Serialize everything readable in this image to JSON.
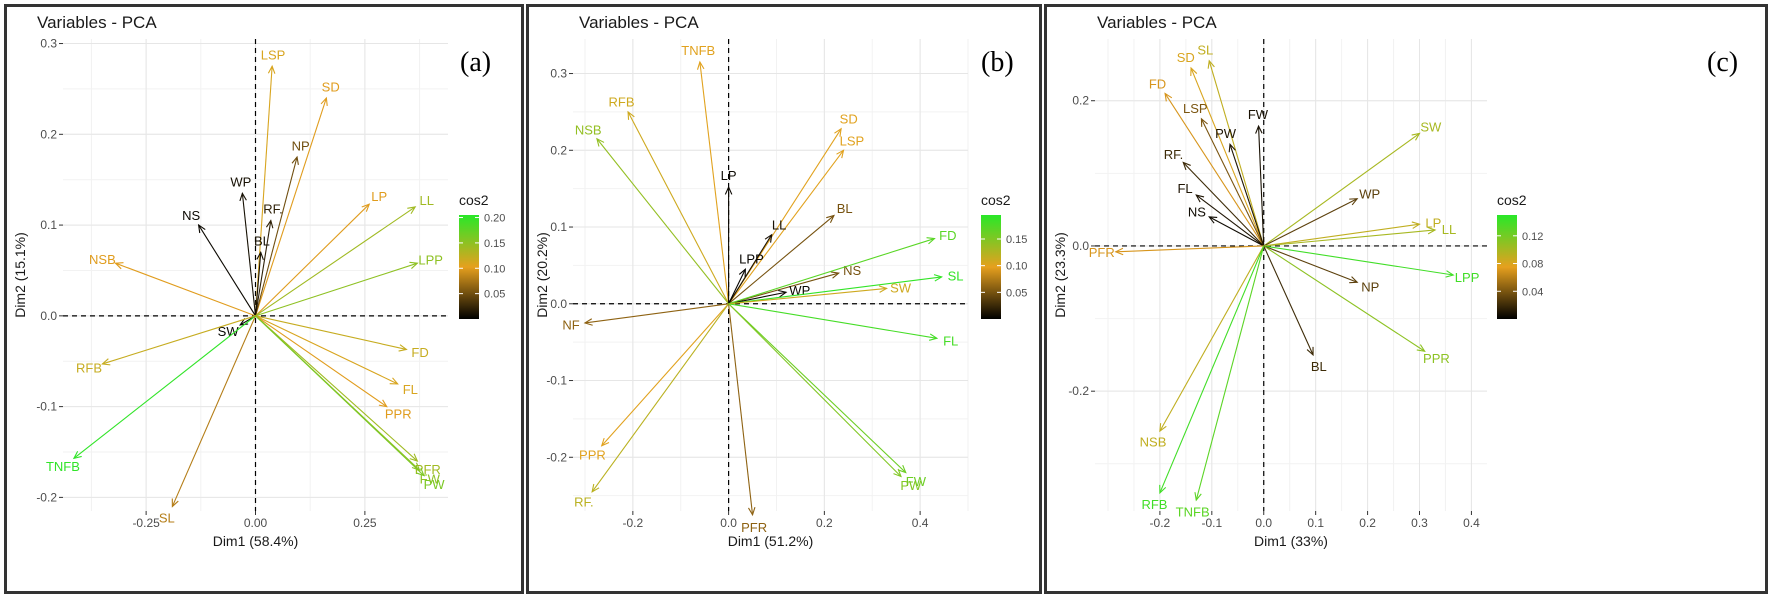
{
  "chart_data": [
    {
      "type": "scatter",
      "title": "Variables - PCA",
      "tag": "(a)",
      "xlabel": "Dim1 (58.4%)",
      "ylabel": "Dim2 (15.1%)",
      "xlim": [
        -0.44,
        0.44
      ],
      "ylim": [
        -0.215,
        0.305
      ],
      "xticks": [
        -0.25,
        0,
        0.25
      ],
      "xtick_labels": [
        "-0.25",
        "0.00",
        "0.25"
      ],
      "yticks": [
        -0.2,
        -0.1,
        0,
        0.1,
        0.2,
        0.3
      ],
      "ytick_labels": [
        "-0.2",
        "-0.1",
        "0.0",
        "0.1",
        "0.2",
        "0.3"
      ],
      "legend": {
        "title": "cos2",
        "ticks": [
          0.05,
          0.1,
          0.15,
          0.2
        ],
        "tick_labels": [
          "0.05",
          "0.10",
          "0.15",
          "0.20"
        ],
        "min": 0.0,
        "max": 0.205
      },
      "variables": [
        {
          "name": "LSP",
          "x": 0.038,
          "y": 0.275,
          "cos2": 0.11
        },
        {
          "name": "SD",
          "x": 0.162,
          "y": 0.24,
          "cos2": 0.1
        },
        {
          "name": "NP",
          "x": 0.095,
          "y": 0.175,
          "cos2": 0.05
        },
        {
          "name": "RF.",
          "x": 0.035,
          "y": 0.105,
          "cos2": 0.02
        },
        {
          "name": "BL",
          "x": 0.012,
          "y": 0.07,
          "cos2": 0.01
        },
        {
          "name": "WP",
          "x": -0.03,
          "y": 0.135,
          "cos2": 0.01
        },
        {
          "name": "NS",
          "x": -0.13,
          "y": 0.1,
          "cos2": 0.005
        },
        {
          "name": "NSB",
          "x": -0.32,
          "y": 0.058,
          "cos2": 0.1
        },
        {
          "name": "SW",
          "x": -0.035,
          "y": -0.01,
          "cos2": 0.003
        },
        {
          "name": "RFB",
          "x": -0.35,
          "y": -0.053,
          "cos2": 0.12
        },
        {
          "name": "TNFB",
          "x": -0.415,
          "y": -0.157,
          "cos2": 0.2
        },
        {
          "name": "SL",
          "x": -0.19,
          "y": -0.21,
          "cos2": 0.08
        },
        {
          "name": "LP",
          "x": 0.26,
          "y": 0.123,
          "cos2": 0.1
        },
        {
          "name": "LL",
          "x": 0.365,
          "y": 0.12,
          "cos2": 0.14
        },
        {
          "name": "LPP",
          "x": 0.37,
          "y": 0.058,
          "cos2": 0.15
        },
        {
          "name": "FD",
          "x": 0.345,
          "y": -0.037,
          "cos2": 0.12
        },
        {
          "name": "FL",
          "x": 0.325,
          "y": -0.075,
          "cos2": 0.11
        },
        {
          "name": "PPR",
          "x": 0.3,
          "y": -0.1,
          "cos2": 0.1
        },
        {
          "name": "PFR",
          "x": 0.37,
          "y": -0.16,
          "cos2": 0.14
        },
        {
          "name": "FW",
          "x": 0.375,
          "y": -0.17,
          "cos2": 0.15
        },
        {
          "name": "PW",
          "x": 0.385,
          "y": -0.176,
          "cos2": 0.16
        }
      ]
    },
    {
      "type": "scatter",
      "title": "Variables - PCA",
      "tag": "(b)",
      "xlabel": "Dim1 (51.2%)",
      "ylabel": "Dim2 (20.2%)",
      "xlim": [
        -0.325,
        0.5
      ],
      "ylim": [
        -0.27,
        0.345
      ],
      "xticks": [
        -0.2,
        0,
        0.2,
        0.4
      ],
      "xtick_labels": [
        "-0.2",
        "0.0",
        "0.2",
        "0.4"
      ],
      "yticks": [
        -0.2,
        -0.1,
        0,
        0.1,
        0.2,
        0.3
      ],
      "ytick_labels": [
        "-0.2",
        "-0.1",
        "0.0",
        "0.1",
        "0.2",
        "0.3"
      ],
      "legend": {
        "title": "cos2",
        "ticks": [
          0.05,
          0.1,
          0.15
        ],
        "tick_labels": [
          "0.05",
          "0.10",
          "0.15"
        ],
        "min": 0.0,
        "max": 0.195
      },
      "variables": [
        {
          "name": "TNFB",
          "x": -0.06,
          "y": 0.315,
          "cos2": 0.1
        },
        {
          "name": "RFB",
          "x": -0.21,
          "y": 0.25,
          "cos2": 0.11
        },
        {
          "name": "NSB",
          "x": -0.275,
          "y": 0.215,
          "cos2": 0.14
        },
        {
          "name": "LP",
          "x": 0.0,
          "y": 0.152,
          "cos2": 0.005
        },
        {
          "name": "SD",
          "x": 0.235,
          "y": 0.228,
          "cos2": 0.1
        },
        {
          "name": "LSP",
          "x": 0.24,
          "y": 0.2,
          "cos2": 0.1
        },
        {
          "name": "BL",
          "x": 0.22,
          "y": 0.115,
          "cos2": 0.05
        },
        {
          "name": "LL",
          "x": 0.09,
          "y": 0.09,
          "cos2": 0.01
        },
        {
          "name": "LPP",
          "x": 0.035,
          "y": 0.045,
          "cos2": 0.003
        },
        {
          "name": "NS",
          "x": 0.23,
          "y": 0.04,
          "cos2": 0.05
        },
        {
          "name": "WP",
          "x": 0.12,
          "y": 0.015,
          "cos2": 0.005
        },
        {
          "name": "FD",
          "x": 0.43,
          "y": 0.085,
          "cos2": 0.17
        },
        {
          "name": "SL",
          "x": 0.445,
          "y": 0.035,
          "cos2": 0.19
        },
        {
          "name": "SW",
          "x": 0.33,
          "y": 0.02,
          "cos2": 0.11
        },
        {
          "name": "FL",
          "x": 0.435,
          "y": -0.045,
          "cos2": 0.18
        },
        {
          "name": "NF",
          "x": -0.3,
          "y": -0.025,
          "cos2": 0.06
        },
        {
          "name": "PPR",
          "x": -0.265,
          "y": -0.185,
          "cos2": 0.1
        },
        {
          "name": "RF.",
          "x": -0.285,
          "y": -0.245,
          "cos2": 0.12
        },
        {
          "name": "PFR",
          "x": 0.05,
          "y": -0.275,
          "cos2": 0.06
        },
        {
          "name": "FW",
          "x": 0.37,
          "y": -0.22,
          "cos2": 0.16
        },
        {
          "name": "PW",
          "x": 0.36,
          "y": -0.225,
          "cos2": 0.15
        }
      ]
    },
    {
      "type": "scatter",
      "title": "Variables - PCA",
      "tag": "(c)",
      "xlabel": "Dim1 (33%)",
      "ylabel": "Dim2 (23.3%)",
      "xlim": [
        -0.325,
        0.43
      ],
      "ylim": [
        -0.365,
        0.285
      ],
      "xticks": [
        -0.2,
        -0.1,
        0,
        0.1,
        0.2,
        0.3,
        0.4
      ],
      "xtick_labels": [
        "-0.2",
        "-0.1",
        "0.0",
        "0.1",
        "0.2",
        "0.3",
        "0.4"
      ],
      "yticks": [
        -0.2,
        0,
        0.2
      ],
      "ytick_labels": [
        "-0.2",
        "0.0",
        "0.2"
      ],
      "legend": {
        "title": "cos2",
        "ticks": [
          0.04,
          0.08,
          0.12
        ],
        "tick_labels": [
          "0.04",
          "0.08",
          "0.12"
        ],
        "min": 0.0,
        "max": 0.15
      },
      "variables": [
        {
          "name": "SL",
          "x": -0.105,
          "y": 0.255,
          "cos2": 0.09
        },
        {
          "name": "SD",
          "x": -0.14,
          "y": 0.245,
          "cos2": 0.08
        },
        {
          "name": "FD",
          "x": -0.19,
          "y": 0.21,
          "cos2": 0.07
        },
        {
          "name": "LSP",
          "x": -0.12,
          "y": 0.175,
          "cos2": 0.04
        },
        {
          "name": "FW",
          "x": -0.01,
          "y": 0.165,
          "cos2": 0.008
        },
        {
          "name": "PW",
          "x": -0.065,
          "y": 0.14,
          "cos2": 0.01
        },
        {
          "name": "RF.",
          "x": -0.155,
          "y": 0.115,
          "cos2": 0.02
        },
        {
          "name": "FL",
          "x": -0.13,
          "y": 0.07,
          "cos2": 0.01
        },
        {
          "name": "NS",
          "x": -0.105,
          "y": 0.04,
          "cos2": 0.005
        },
        {
          "name": "SW",
          "x": 0.3,
          "y": 0.155,
          "cos2": 0.1
        },
        {
          "name": "WP",
          "x": 0.18,
          "y": 0.065,
          "cos2": 0.03
        },
        {
          "name": "LP",
          "x": 0.3,
          "y": 0.03,
          "cos2": 0.09
        },
        {
          "name": "LL",
          "x": 0.33,
          "y": 0.022,
          "cos2": 0.1
        },
        {
          "name": "LPP",
          "x": 0.365,
          "y": -0.04,
          "cos2": 0.14
        },
        {
          "name": "NP",
          "x": 0.18,
          "y": -0.05,
          "cos2": 0.03
        },
        {
          "name": "PPR",
          "x": 0.31,
          "y": -0.145,
          "cos2": 0.11
        },
        {
          "name": "BL",
          "x": 0.095,
          "y": -0.15,
          "cos2": 0.02
        },
        {
          "name": "PFR",
          "x": -0.285,
          "y": -0.008,
          "cos2": 0.07
        },
        {
          "name": "NSB",
          "x": -0.2,
          "y": -0.255,
          "cos2": 0.09
        },
        {
          "name": "RFB",
          "x": -0.2,
          "y": -0.34,
          "cos2": 0.14
        },
        {
          "name": "TNFB",
          "x": -0.13,
          "y": -0.35,
          "cos2": 0.13
        }
      ]
    }
  ]
}
